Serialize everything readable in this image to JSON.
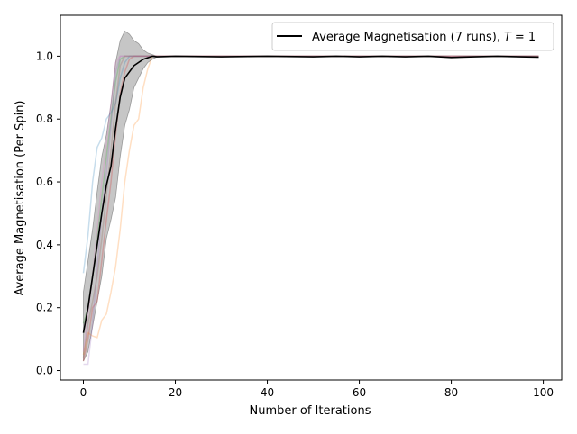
{
  "chart_data": {
    "type": "line",
    "title": "",
    "xlabel": "Number of Iterations",
    "ylabel": "Average Magnetisation (Per Spin)",
    "xlim": [
      -5,
      104
    ],
    "ylim": [
      -0.03,
      1.13
    ],
    "xticks": [
      0,
      20,
      40,
      60,
      80,
      100
    ],
    "yticks": [
      0.0,
      0.2,
      0.4,
      0.6,
      0.8,
      1.0
    ],
    "xtick_labels": [
      "0",
      "20",
      "40",
      "60",
      "80",
      "100"
    ],
    "ytick_labels": [
      "0.0",
      "0.2",
      "0.4",
      "0.6",
      "0.8",
      "1.0"
    ],
    "grid": false,
    "legend": {
      "placement": "top-right",
      "label_prefix": "Average Magnetisation (7 runs),",
      "label_math": "T",
      "label_eq": "= 1"
    },
    "mean": {
      "name": "Average Magnetisation (7 runs), T = 1",
      "color": "#000000",
      "x": [
        0,
        1,
        2,
        3,
        4,
        5,
        6,
        7,
        8,
        9,
        10,
        11,
        12,
        13,
        14,
        15,
        16,
        20,
        30,
        40,
        50,
        55,
        60,
        65,
        70,
        75,
        80,
        85,
        90,
        95,
        99
      ],
      "y": [
        0.12,
        0.2,
        0.3,
        0.4,
        0.5,
        0.59,
        0.65,
        0.77,
        0.87,
        0.93,
        0.95,
        0.97,
        0.98,
        0.99,
        0.995,
        1.0,
        0.998,
        1.0,
        0.998,
        1.0,
        0.998,
        1.0,
        0.998,
        1.0,
        0.998,
        1.0,
        0.996,
        0.998,
        1.0,
        0.998,
        0.997
      ]
    },
    "band": {
      "color": "#808080",
      "x": [
        0,
        1,
        2,
        3,
        4,
        5,
        6,
        7,
        8,
        9,
        10,
        11,
        12,
        13,
        14,
        15,
        16
      ],
      "upper": [
        0.25,
        0.35,
        0.45,
        0.57,
        0.68,
        0.75,
        0.85,
        0.98,
        1.05,
        1.08,
        1.07,
        1.05,
        1.04,
        1.02,
        1.01,
        1.005,
        1.0
      ],
      "lower": [
        0.03,
        0.06,
        0.14,
        0.22,
        0.3,
        0.42,
        0.48,
        0.55,
        0.68,
        0.78,
        0.83,
        0.9,
        0.93,
        0.96,
        0.98,
        0.99,
        0.998
      ]
    },
    "runs": [
      {
        "color": "#1f77b4",
        "x": [
          0,
          1,
          2,
          3,
          4,
          5,
          6,
          7,
          8,
          9,
          10,
          12,
          14,
          16,
          99
        ],
        "y": [
          0.31,
          0.43,
          0.6,
          0.71,
          0.74,
          0.8,
          0.82,
          0.85,
          0.93,
          0.98,
          1.0,
          1.0,
          1.0,
          1.0,
          1.0
        ]
      },
      {
        "color": "#ff7f0e",
        "x": [
          0,
          1,
          2,
          3,
          4,
          5,
          6,
          7,
          8,
          9,
          10,
          11,
          12,
          13,
          14,
          15,
          16,
          99
        ],
        "y": [
          0.05,
          0.12,
          0.11,
          0.105,
          0.16,
          0.18,
          0.25,
          0.33,
          0.45,
          0.6,
          0.7,
          0.78,
          0.8,
          0.9,
          0.96,
          1.0,
          1.0,
          1.0
        ]
      },
      {
        "color": "#2ca02c",
        "x": [
          0,
          1,
          2,
          3,
          4,
          5,
          6,
          7,
          8,
          9,
          10,
          12,
          99
        ],
        "y": [
          0.15,
          0.2,
          0.3,
          0.42,
          0.55,
          0.68,
          0.8,
          0.92,
          0.99,
          1.0,
          1.0,
          1.0,
          1.0
        ]
      },
      {
        "color": "#d62728",
        "x": [
          0,
          1,
          2,
          3,
          4,
          5,
          6,
          7,
          8,
          9,
          10,
          11,
          12,
          99
        ],
        "y": [
          0.03,
          0.1,
          0.2,
          0.22,
          0.35,
          0.48,
          0.6,
          0.75,
          0.88,
          0.95,
          0.99,
          1.0,
          1.0,
          1.0
        ]
      },
      {
        "color": "#9467bd",
        "x": [
          0,
          1,
          2,
          3,
          4,
          5,
          6,
          7,
          8,
          9,
          10,
          99
        ],
        "y": [
          0.02,
          0.02,
          0.15,
          0.33,
          0.5,
          0.63,
          0.78,
          0.95,
          1.0,
          1.0,
          1.0,
          1.0
        ]
      },
      {
        "color": "#8c564b",
        "x": [
          0,
          1,
          2,
          3,
          4,
          5,
          6,
          7,
          8,
          9,
          10,
          99
        ],
        "y": [
          0.04,
          0.15,
          0.22,
          0.3,
          0.42,
          0.56,
          0.7,
          0.85,
          0.97,
          1.0,
          1.0,
          1.0
        ]
      },
      {
        "color": "#e377c2",
        "x": [
          0,
          1,
          2,
          3,
          4,
          5,
          6,
          7,
          8,
          9,
          10,
          99
        ],
        "y": [
          0.06,
          0.18,
          0.3,
          0.45,
          0.6,
          0.72,
          0.85,
          0.98,
          1.0,
          1.0,
          1.0,
          1.0
        ]
      }
    ]
  }
}
